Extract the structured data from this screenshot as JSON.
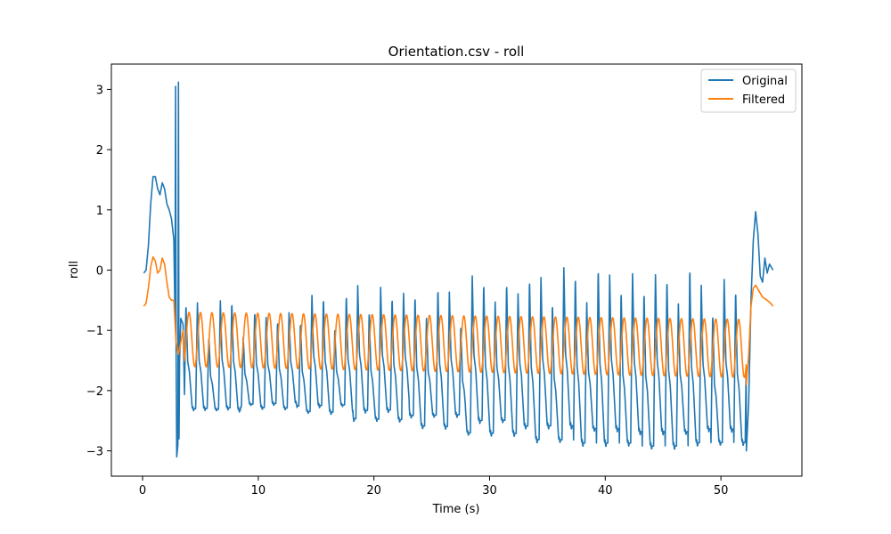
{
  "chart_data": {
    "type": "line",
    "title": "Orientation.csv - roll",
    "xlabel": "Time (s)",
    "ylabel": "roll",
    "xlim": [
      -2.7,
      57.0
    ],
    "ylim": [
      -3.42,
      3.42
    ],
    "xticks": [
      0,
      10,
      20,
      30,
      40,
      50
    ],
    "yticks": [
      -3,
      -2,
      -1,
      0,
      1,
      2,
      3
    ],
    "grid": false,
    "legend": "top-right",
    "series": [
      {
        "name": "Original",
        "color": "#1f77b4",
        "model": {
          "x_start": 0.1,
          "x_end": 54.5,
          "osc_start": 3.6,
          "osc_end": 52.2,
          "osc_period": 0.99,
          "osc_center": -1.45,
          "osc_amplitude": 0.75,
          "osc_amplitude_growth": 0.1,
          "peak_values": [
            -0.7,
            -0.8,
            -0.6,
            -0.4,
            -0.5,
            -0.3,
            -0.2,
            -0.15,
            -0.2,
            -0.35
          ],
          "trough_values": [
            -2.3,
            -2.25,
            -2.3,
            -2.4,
            -2.5,
            -2.6,
            -2.7,
            -2.75,
            -2.8,
            -2.75
          ]
        },
        "points": [
          [
            0.1,
            -0.05
          ],
          [
            0.3,
            0.0
          ],
          [
            0.5,
            0.4
          ],
          [
            0.7,
            1.1
          ],
          [
            0.9,
            1.55
          ],
          [
            1.1,
            1.55
          ],
          [
            1.3,
            1.35
          ],
          [
            1.5,
            1.25
          ],
          [
            1.7,
            1.45
          ],
          [
            1.9,
            1.35
          ],
          [
            2.1,
            1.1
          ],
          [
            2.3,
            1.0
          ],
          [
            2.5,
            0.85
          ],
          [
            2.7,
            0.5
          ],
          [
            2.8,
            -0.8
          ],
          [
            2.85,
            3.05
          ],
          [
            2.9,
            -1.5
          ],
          [
            2.95,
            -3.1
          ],
          [
            3.05,
            -2.9
          ],
          [
            3.1,
            3.12
          ],
          [
            3.15,
            -2.8
          ],
          [
            3.2,
            -1.5
          ],
          [
            3.3,
            -0.8
          ],
          [
            3.5,
            -0.9
          ],
          [
            51.8,
            -1.0
          ],
          [
            52.0,
            -2.4
          ],
          [
            52.2,
            -3.0
          ],
          [
            52.4,
            -2.2
          ],
          [
            52.6,
            -0.5
          ],
          [
            52.8,
            0.5
          ],
          [
            53.0,
            0.97
          ],
          [
            53.2,
            0.6
          ],
          [
            53.4,
            -0.1
          ],
          [
            53.6,
            -0.2
          ],
          [
            53.8,
            0.2
          ],
          [
            54.0,
            -0.05
          ],
          [
            54.2,
            0.1
          ],
          [
            54.5,
            0.0
          ]
        ]
      },
      {
        "name": "Filtered",
        "color": "#ff7f0e",
        "model": {
          "x_start": 0.1,
          "x_end": 54.5,
          "osc_start": 3.6,
          "osc_end": 52.2,
          "osc_period": 0.99,
          "osc_center": -1.15,
          "osc_amplitude": 0.45,
          "osc_amplitude_growth": 0.07
        },
        "points": [
          [
            0.1,
            -0.6
          ],
          [
            0.3,
            -0.55
          ],
          [
            0.5,
            -0.3
          ],
          [
            0.7,
            0.05
          ],
          [
            0.9,
            0.22
          ],
          [
            1.1,
            0.15
          ],
          [
            1.3,
            -0.05
          ],
          [
            1.5,
            0.0
          ],
          [
            1.7,
            0.2
          ],
          [
            1.9,
            0.1
          ],
          [
            2.1,
            -0.2
          ],
          [
            2.3,
            -0.45
          ],
          [
            2.5,
            -0.5
          ],
          [
            2.7,
            -0.5
          ],
          [
            2.9,
            -1.2
          ],
          [
            3.1,
            -1.4
          ],
          [
            3.3,
            -1.2
          ],
          [
            3.5,
            -1.0
          ],
          [
            51.8,
            -1.2
          ],
          [
            52.0,
            -1.7
          ],
          [
            52.2,
            -1.9
          ],
          [
            52.4,
            -1.4
          ],
          [
            52.6,
            -0.6
          ],
          [
            52.8,
            -0.3
          ],
          [
            53.0,
            -0.25
          ],
          [
            53.3,
            -0.35
          ],
          [
            53.6,
            -0.45
          ],
          [
            54.0,
            -0.5
          ],
          [
            54.3,
            -0.55
          ],
          [
            54.5,
            -0.6
          ]
        ]
      }
    ]
  }
}
